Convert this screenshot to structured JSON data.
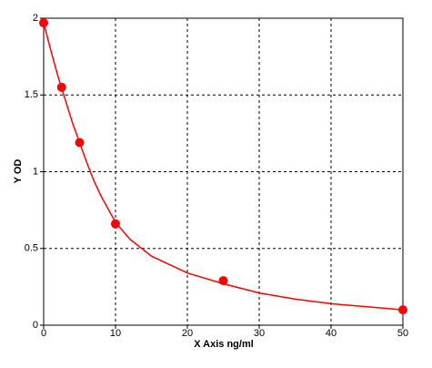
{
  "chart_data": {
    "type": "scatter",
    "xlabel": "X Axis ng/ml",
    "ylabel": "Y OD",
    "xlim": [
      0,
      50
    ],
    "xticks": [
      0,
      10,
      20,
      30,
      40,
      50
    ],
    "ylim": [
      0,
      2
    ],
    "yticks": [
      0,
      0.5,
      1,
      1.5,
      2
    ],
    "grid": true,
    "color": "#ff0000",
    "points": {
      "x": [
        0,
        2.5,
        5,
        10,
        25,
        50
      ],
      "values": [
        1.97,
        1.55,
        1.19,
        0.66,
        0.29,
        0.1
      ]
    },
    "curve": {
      "x": [
        0,
        1,
        2,
        3,
        4,
        5,
        6,
        7,
        8,
        10,
        12,
        15,
        20,
        25,
        30,
        35,
        40,
        45,
        50
      ],
      "values": [
        1.97,
        1.79,
        1.62,
        1.47,
        1.32,
        1.19,
        1.06,
        0.94,
        0.84,
        0.67,
        0.56,
        0.45,
        0.34,
        0.27,
        0.21,
        0.17,
        0.14,
        0.12,
        0.1
      ]
    }
  }
}
